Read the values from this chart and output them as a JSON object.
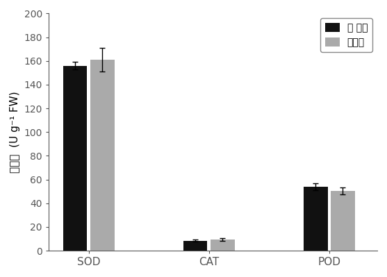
{
  "categories": [
    "SOD",
    "CAT",
    "POD"
  ],
  "series": [
    {
      "name": "本 方法",
      "color": "#111111",
      "values": [
        156,
        8.5,
        54
      ],
      "errors": [
        3,
        0.8,
        3
      ]
    },
    {
      "name": "传统法",
      "color": "#aaaaaa",
      "values": [
        161,
        9.5,
        50.5
      ],
      "errors": [
        10,
        1.0,
        3
      ]
    }
  ],
  "ylabel": "醂活力  (U g⁻¹ FW)",
  "ylim": [
    0,
    200
  ],
  "yticks": [
    0,
    20,
    40,
    60,
    80,
    100,
    120,
    140,
    160,
    180,
    200
  ],
  "bar_width": 0.3,
  "legend_loc": "upper right",
  "background_color": "#ffffff",
  "figure_facecolor": "#ffffff",
  "group_positions": [
    0.5,
    2.0,
    3.5
  ]
}
